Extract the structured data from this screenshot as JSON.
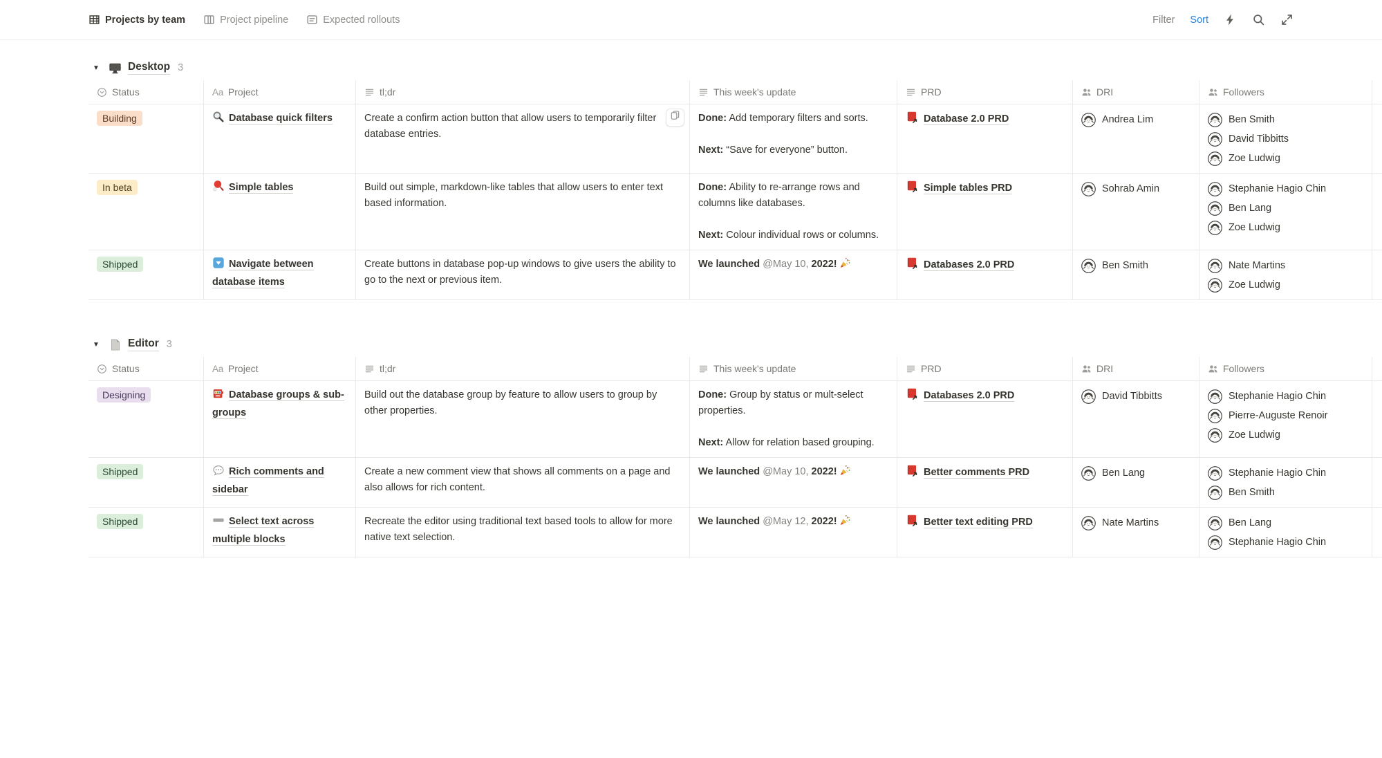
{
  "view_tabs": [
    {
      "label": "Projects by team",
      "icon": "table",
      "active": true
    },
    {
      "label": "Project pipeline",
      "icon": "board",
      "active": false
    },
    {
      "label": "Expected rollouts",
      "icon": "list",
      "active": false
    }
  ],
  "toolbar": {
    "filter": "Filter",
    "sort": "Sort",
    "sort_color": "#2383e2",
    "action_icons": [
      "bolt",
      "search",
      "expand"
    ]
  },
  "columns": [
    {
      "label": "Status",
      "icon": "select"
    },
    {
      "label": "Project",
      "icon": "title"
    },
    {
      "label": "tl;dr",
      "icon": "text"
    },
    {
      "label": "This week's update",
      "icon": "text"
    },
    {
      "label": "PRD",
      "icon": "text"
    },
    {
      "label": "DRI",
      "icon": "person"
    },
    {
      "label": "Followers",
      "icon": "person"
    }
  ],
  "status_styles": {
    "Building": {
      "bg": "#fadec9",
      "color": "#5c3b23"
    },
    "In beta": {
      "bg": "#fdecc8",
      "color": "#4f431e"
    },
    "Shipped": {
      "bg": "#dbeddb",
      "color": "#28492f"
    },
    "Designing": {
      "bg": "#e8deee",
      "color": "#4c3a5e"
    }
  },
  "groups": [
    {
      "name": "Desktop",
      "icon": "monitor",
      "count": "3",
      "rows": [
        {
          "status": "Building",
          "project": {
            "icon": "magnifier",
            "title": "Database quick filters"
          },
          "tldr": "Create a confirm action button that allow users to temporarily filter database entries.",
          "tldr_button": true,
          "update": [
            [
              {
                "t": "Done:",
                "b": true
              },
              {
                "t": " Add temporary filters and sorts."
              }
            ],
            [
              {
                "t": "Next:",
                "b": true
              },
              {
                "t": " “Save for everyone” button."
              }
            ]
          ],
          "prd": "Database 2.0 PRD",
          "dri": [
            "Andrea Lim"
          ],
          "followers": [
            "Ben Smith",
            "David Tibbitts",
            "Zoe Ludwig"
          ]
        },
        {
          "status": "In beta",
          "project": {
            "icon": "pingpong",
            "title": "Simple tables"
          },
          "tldr": "Build out simple, markdown-like tables that allow users to enter text based information.",
          "update": [
            [
              {
                "t": "Done:",
                "b": true
              },
              {
                "t": " Ability to re-arrange rows and columns like databases."
              }
            ],
            [
              {
                "t": "Next:",
                "b": true
              },
              {
                "t": " Colour individual rows or columns."
              }
            ]
          ],
          "prd": "Simple tables PRD",
          "dri": [
            "Sohrab Amin"
          ],
          "followers": [
            "Stephanie Hagio Chin",
            "Ben Lang",
            "Zoe Ludwig"
          ]
        },
        {
          "status": "Shipped",
          "project": {
            "icon": "downbtn",
            "title": "Navigate between database items"
          },
          "tldr": "Create buttons in database pop-up windows to give users the ability to go to the next or previous item.",
          "update": [
            [
              {
                "t": "We launched ",
                "b": true
              },
              {
                "t": "@May 10,",
                "m": true
              },
              {
                "t": " 2022!",
                "b": true
              },
              {
                "i": "party"
              }
            ]
          ],
          "prd": "Databases 2.0 PRD",
          "dri": [
            "Ben Smith"
          ],
          "followers": [
            "Nate Martins",
            "Zoe Ludwig"
          ]
        }
      ]
    },
    {
      "name": "Editor",
      "icon": "page",
      "count": "3",
      "rows": [
        {
          "status": "Designing",
          "project": {
            "icon": "slot",
            "title": "Database groups & sub-groups"
          },
          "tldr": "Build out the database group by feature to allow users to group by other properties.",
          "update": [
            [
              {
                "t": "Done:",
                "b": true
              },
              {
                "t": " Group by status or mult-select properties."
              }
            ],
            [
              {
                "t": "Next:",
                "b": true
              },
              {
                "t": " Allow for relation based grouping."
              }
            ]
          ],
          "prd": "Databases 2.0 PRD",
          "dri": [
            "David Tibbitts"
          ],
          "followers": [
            "Stephanie Hagio Chin",
            "Pierre-Auguste Renoir",
            "Zoe Ludwig"
          ]
        },
        {
          "status": "Shipped",
          "project": {
            "icon": "bubble",
            "title": "Rich comments and sidebar"
          },
          "tldr": "Create a new comment view that shows all comments on a page and also allows for rich content.",
          "update": [
            [
              {
                "t": "We launched ",
                "b": true
              },
              {
                "t": "@May 10,",
                "m": true
              },
              {
                "t": " 2022!",
                "b": true
              },
              {
                "i": "party"
              }
            ]
          ],
          "prd": "Better comments PRD",
          "dri": [
            "Ben Lang"
          ],
          "followers": [
            "Stephanie Hagio Chin",
            "Ben Smith"
          ]
        },
        {
          "status": "Shipped",
          "project": {
            "icon": "graybar",
            "title": "Select text across multiple blocks"
          },
          "tldr": "Recreate the editor using traditional text based tools to allow for more native text selection.",
          "update": [
            [
              {
                "t": "We launched ",
                "b": true
              },
              {
                "t": "@May 12,",
                "m": true
              },
              {
                "t": " 2022!",
                "b": true
              },
              {
                "i": "party"
              }
            ]
          ],
          "prd": "Better text editing PRD",
          "dri": [
            "Nate Martins"
          ],
          "followers": [
            "Ben Lang",
            "Stephanie Hagio Chin"
          ]
        }
      ]
    }
  ]
}
